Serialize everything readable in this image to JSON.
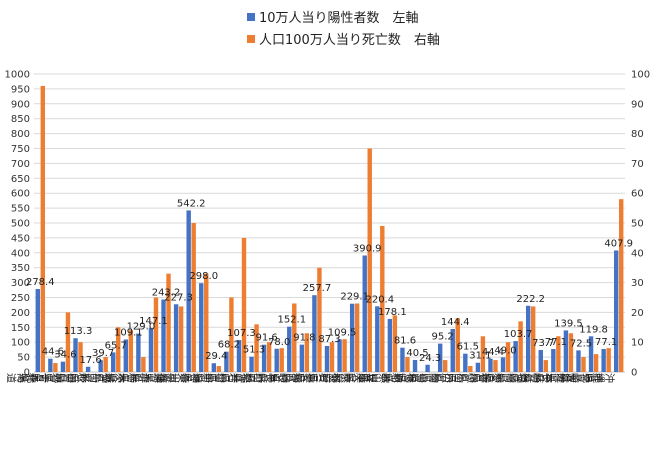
{
  "chart_data": {
    "type": "bar",
    "legend": [
      {
        "key": "cases",
        "label": "10万人当り陽性者数　左軸",
        "color": "#4472C4"
      },
      {
        "key": "deaths",
        "label": "人口100万人当り死亡数　右軸",
        "color": "#ED7D31"
      }
    ],
    "left_axis": {
      "min": 0,
      "max": 1000,
      "step": 50,
      "ticks": [
        "0",
        "50",
        "100",
        "150",
        "200",
        "250",
        "300",
        "350",
        "400",
        "450",
        "500",
        "550",
        "600",
        "650",
        "700",
        "750",
        "800",
        "850",
        "900",
        "950",
        "1000"
      ]
    },
    "right_axis": {
      "min": 0,
      "max": 100,
      "step": 10,
      "ticks": [
        "0",
        "10",
        "20",
        "30",
        "40",
        "50",
        "60",
        "70",
        "80",
        "90",
        "100"
      ]
    },
    "categories": [
      "北海道",
      "青森県",
      "岩手県",
      "宮城県",
      "秋田県",
      "山形県",
      "福島県",
      "茨城県",
      "栃木県",
      "群馬県",
      "埼玉県",
      "千葉県",
      "東京都",
      "神奈川県",
      "新潟県",
      "富山県",
      "石川県",
      "福井県",
      "山梨県",
      "長野県",
      "岐阜県",
      "静岡県",
      "愛知県",
      "三重県",
      "滋賀県",
      "京都府",
      "大阪府",
      "兵庫県",
      "奈良県",
      "和歌山県",
      "鳥取県",
      "島根県",
      "岡山県",
      "広島県",
      "山口県",
      "徳島県",
      "香川県",
      "愛媛県",
      "高知県",
      "福岡県",
      "佐賀県",
      "長崎県",
      "熊本県",
      "大分県",
      "宮崎県",
      "鹿児島県",
      "沖縄県"
    ],
    "series": [
      {
        "name": "10万人当り陽性者数　左軸",
        "axis": "left",
        "color": "#4472C4",
        "values": [
          278.4,
          44.6,
          34.6,
          113.3,
          17.6,
          39.7,
          65.7,
          109.1,
          129.0,
          147.1,
          243.2,
          227.3,
          542.2,
          298.0,
          29.4,
          68.2,
          107.3,
          51.3,
          91.6,
          78.0,
          152.1,
          91.8,
          257.7,
          87.3,
          109.5,
          229.1,
          390.9,
          220.4,
          178.1,
          81.6,
          40.5,
          24.3,
          95.2,
          144.4,
          61.5,
          31.1,
          44.4,
          49.0,
          103.7,
          222.2,
          73.7,
          77.1,
          139.5,
          72.5,
          119.8,
          77.1,
          407.9
        ]
      },
      {
        "name": "人口100万人当り死亡数　右軸",
        "axis": "right",
        "color": "#ED7D31",
        "values": [
          96,
          3,
          20,
          10,
          0,
          5,
          15,
          14,
          5,
          25,
          33,
          22,
          50,
          33,
          2,
          25,
          45,
          16,
          10,
          8,
          23,
          13,
          35,
          10,
          11,
          23,
          75,
          49,
          19,
          5,
          0,
          0,
          4,
          18,
          2,
          12,
          4,
          10,
          17,
          22,
          4,
          12,
          13,
          5,
          6,
          8,
          58
        ]
      }
    ],
    "data_labels": [
      "278.4",
      "44.6",
      "34.6",
      "113.3",
      "17.6",
      "39.7",
      "65.7",
      "109.1",
      "129.0",
      "147.1",
      "243.2",
      "227.3",
      "542.2",
      "298.0",
      "29.4",
      "68.2",
      "107.3",
      "51.3",
      "91.6",
      "78.0",
      "152.1",
      "91.8",
      "257.7",
      "87.3",
      "109.5",
      "229.1",
      "390.9",
      "220.4",
      "178.1",
      "81.6",
      "40.5",
      "24.3",
      "95.2",
      "144.4",
      "61.5",
      "31.1",
      "44.4",
      "49.0",
      "103.7",
      "222.2",
      "73.7",
      "77.1",
      "139.5",
      "72.5",
      "119.8",
      "77.1",
      "407.9"
    ]
  }
}
